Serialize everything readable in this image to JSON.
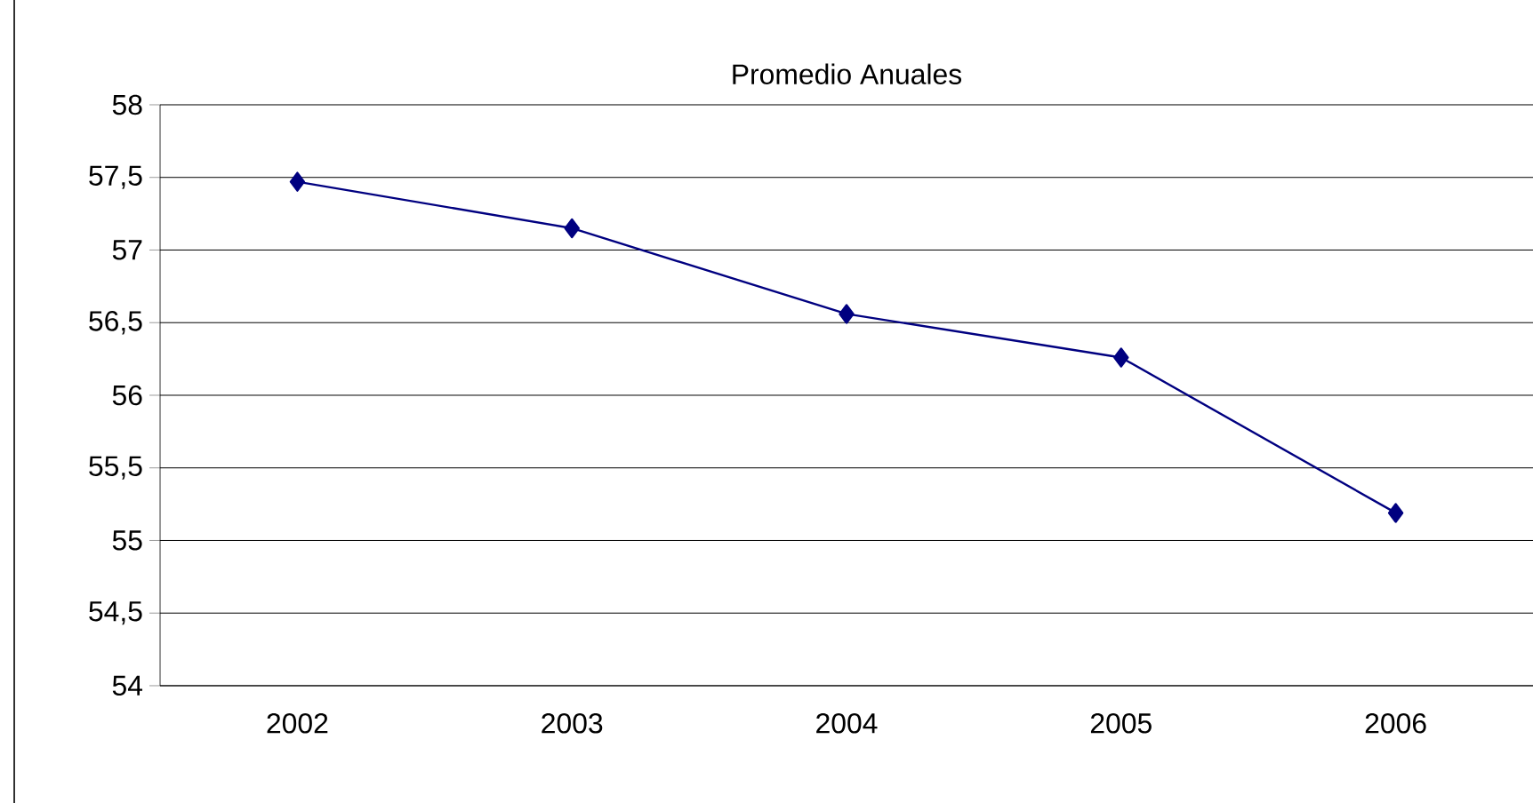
{
  "chart_data": {
    "type": "line",
    "title": "Promedio Anuales",
    "categories": [
      "2002",
      "2003",
      "2004",
      "2005",
      "2006"
    ],
    "values": [
      57.47,
      57.15,
      56.56,
      56.26,
      55.19
    ],
    "color": "#000080",
    "marker": "diamond",
    "grid": "y",
    "ylim": [
      54,
      58
    ],
    "yticks": [
      {
        "value": 54,
        "label": "54"
      },
      {
        "value": 54.5,
        "label": "54,5"
      },
      {
        "value": 55,
        "label": "55"
      },
      {
        "value": 55.5,
        "label": "55,5"
      },
      {
        "value": 56,
        "label": "56"
      },
      {
        "value": 56.5,
        "label": "56,5"
      },
      {
        "value": 57,
        "label": "57"
      },
      {
        "value": 57.5,
        "label": "57,5"
      },
      {
        "value": 58,
        "label": "58"
      }
    ]
  }
}
